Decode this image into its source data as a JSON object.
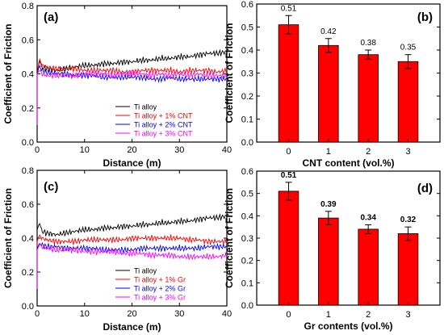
{
  "chart_data": [
    {
      "panel": "(a)",
      "type": "line",
      "xlabel": "Distance (m)",
      "ylabel": "Coefficient of Friction",
      "xlim": [
        0,
        40
      ],
      "ylim": [
        0,
        0.8
      ],
      "xticks": [
        "0",
        "10",
        "20",
        "30",
        "40"
      ],
      "yticks": [
        "0.0",
        "0.2",
        "0.4",
        "0.6",
        "0.8"
      ],
      "legend_position": "bottom-right",
      "series": [
        {
          "name": "Ti alloy",
          "color": "#000000",
          "x": [
            0,
            0.5,
            1,
            2,
            4,
            6,
            8,
            10,
            12,
            14,
            16,
            18,
            20,
            22,
            24,
            26,
            28,
            30,
            32,
            34,
            36,
            38,
            40
          ],
          "y": [
            0.4,
            0.48,
            0.44,
            0.43,
            0.42,
            0.43,
            0.44,
            0.45,
            0.45,
            0.46,
            0.46,
            0.47,
            0.47,
            0.48,
            0.48,
            0.49,
            0.49,
            0.5,
            0.5,
            0.51,
            0.52,
            0.52,
            0.53
          ]
        },
        {
          "name": "Ti alloy + 1% CNT",
          "color": "#ff0000",
          "x": [
            0,
            0.5,
            1,
            2,
            4,
            6,
            8,
            10,
            12,
            14,
            16,
            18,
            20,
            22,
            24,
            26,
            28,
            30,
            32,
            34,
            36,
            38,
            40
          ],
          "y": [
            0.4,
            0.49,
            0.45,
            0.44,
            0.43,
            0.43,
            0.43,
            0.42,
            0.42,
            0.42,
            0.42,
            0.41,
            0.41,
            0.42,
            0.42,
            0.42,
            0.42,
            0.41,
            0.42,
            0.42,
            0.42,
            0.41,
            0.42
          ]
        },
        {
          "name": "Ti alloy + 2% CNT",
          "color": "#0000ff",
          "x": [
            0,
            0.5,
            1,
            2,
            4,
            6,
            8,
            10,
            12,
            14,
            16,
            18,
            20,
            22,
            24,
            26,
            28,
            30,
            32,
            34,
            36,
            38,
            40
          ],
          "y": [
            0.4,
            0.45,
            0.42,
            0.41,
            0.4,
            0.4,
            0.39,
            0.39,
            0.39,
            0.38,
            0.38,
            0.38,
            0.38,
            0.38,
            0.37,
            0.37,
            0.38,
            0.37,
            0.37,
            0.37,
            0.37,
            0.37,
            0.37
          ]
        },
        {
          "name": "Ti alloy + 3% CNT",
          "color": "#ff00ff",
          "x": [
            0,
            0.5,
            1,
            2,
            4,
            6,
            8,
            10,
            12,
            14,
            16,
            18,
            20,
            22,
            24,
            26,
            28,
            30,
            32,
            34,
            36,
            38,
            40
          ],
          "y": [
            0.4,
            0.42,
            0.4,
            0.39,
            0.39,
            0.39,
            0.39,
            0.4,
            0.4,
            0.4,
            0.39,
            0.4,
            0.4,
            0.4,
            0.39,
            0.4,
            0.39,
            0.4,
            0.39,
            0.4,
            0.39,
            0.39,
            0.39
          ]
        }
      ]
    },
    {
      "panel": "(b)",
      "type": "bar",
      "xlabel": "CNT content (vol.%)",
      "ylabel": "Coefficient of Friction",
      "ylim": [
        0,
        0.6
      ],
      "yticks": [
        "0.0",
        "0.1",
        "0.2",
        "0.3",
        "0.4",
        "0.5",
        "0.6"
      ],
      "categories": [
        "0",
        "1",
        "2",
        "3"
      ],
      "values": [
        0.51,
        0.42,
        0.38,
        0.35
      ],
      "errors": [
        0.04,
        0.03,
        0.02,
        0.03
      ],
      "labels": [
        "0.51",
        "0.42",
        "0.38",
        "0.35"
      ],
      "bar_color": "#ff0000"
    },
    {
      "panel": "(c)",
      "type": "line",
      "xlabel": "Distance (m)",
      "ylabel": "Coefficient of Friction",
      "xlim": [
        0,
        40
      ],
      "ylim": [
        0,
        0.8
      ],
      "xticks": [
        "0",
        "10",
        "20",
        "30",
        "40"
      ],
      "yticks": [
        "0.0",
        "0.2",
        "0.4",
        "0.6",
        "0.8"
      ],
      "legend_position": "bottom-right",
      "series": [
        {
          "name": "Ti alloy",
          "color": "#000000",
          "x": [
            0,
            0.5,
            1,
            2,
            4,
            6,
            8,
            10,
            12,
            14,
            16,
            18,
            20,
            22,
            24,
            26,
            28,
            30,
            32,
            34,
            36,
            38,
            40
          ],
          "y": [
            0.45,
            0.49,
            0.44,
            0.43,
            0.42,
            0.43,
            0.44,
            0.45,
            0.45,
            0.46,
            0.46,
            0.47,
            0.47,
            0.48,
            0.48,
            0.49,
            0.49,
            0.5,
            0.5,
            0.51,
            0.52,
            0.52,
            0.53
          ]
        },
        {
          "name": "Ti alloy + 1% Gr",
          "color": "#ff0000",
          "x": [
            0,
            0.5,
            1,
            2,
            4,
            6,
            8,
            10,
            12,
            14,
            16,
            18,
            20,
            22,
            24,
            26,
            28,
            30,
            32,
            34,
            36,
            38,
            40
          ],
          "y": [
            0.38,
            0.42,
            0.4,
            0.39,
            0.38,
            0.38,
            0.38,
            0.39,
            0.39,
            0.39,
            0.39,
            0.39,
            0.4,
            0.4,
            0.4,
            0.4,
            0.4,
            0.4,
            0.39,
            0.39,
            0.38,
            0.38,
            0.38
          ]
        },
        {
          "name": "Ti alloy + 2% Gr",
          "color": "#0000ff",
          "x": [
            0,
            0.5,
            1,
            2,
            4,
            6,
            8,
            10,
            12,
            14,
            16,
            18,
            20,
            22,
            24,
            26,
            28,
            30,
            32,
            34,
            36,
            38,
            40
          ],
          "y": [
            0.34,
            0.37,
            0.36,
            0.35,
            0.35,
            0.34,
            0.34,
            0.34,
            0.34,
            0.33,
            0.33,
            0.33,
            0.33,
            0.34,
            0.34,
            0.34,
            0.34,
            0.34,
            0.34,
            0.34,
            0.35,
            0.35,
            0.35
          ]
        },
        {
          "name": "Ti alloy + 3% Gr",
          "color": "#ff00ff",
          "x": [
            0,
            0.5,
            1,
            2,
            4,
            6,
            8,
            10,
            12,
            14,
            16,
            18,
            20,
            22,
            24,
            26,
            28,
            30,
            32,
            34,
            36,
            38,
            40
          ],
          "y": [
            0.33,
            0.36,
            0.35,
            0.34,
            0.33,
            0.33,
            0.33,
            0.32,
            0.32,
            0.32,
            0.32,
            0.31,
            0.31,
            0.31,
            0.3,
            0.3,
            0.3,
            0.29,
            0.29,
            0.29,
            0.29,
            0.29,
            0.3
          ]
        }
      ]
    },
    {
      "panel": "(d)",
      "type": "bar",
      "xlabel": "Gr contents (vol.%)",
      "ylabel": "Coefficient of Friction",
      "ylim": [
        0,
        0.6
      ],
      "yticks": [
        "0.0",
        "0.1",
        "0.2",
        "0.3",
        "0.4",
        "0.5",
        "0.6"
      ],
      "categories": [
        "0",
        "1",
        "2",
        "3"
      ],
      "values": [
        0.51,
        0.39,
        0.34,
        0.32
      ],
      "errors": [
        0.04,
        0.03,
        0.02,
        0.03
      ],
      "labels": [
        "0.51",
        "0.39",
        "0.34",
        "0.32"
      ],
      "bar_color": "#ff0000"
    }
  ]
}
